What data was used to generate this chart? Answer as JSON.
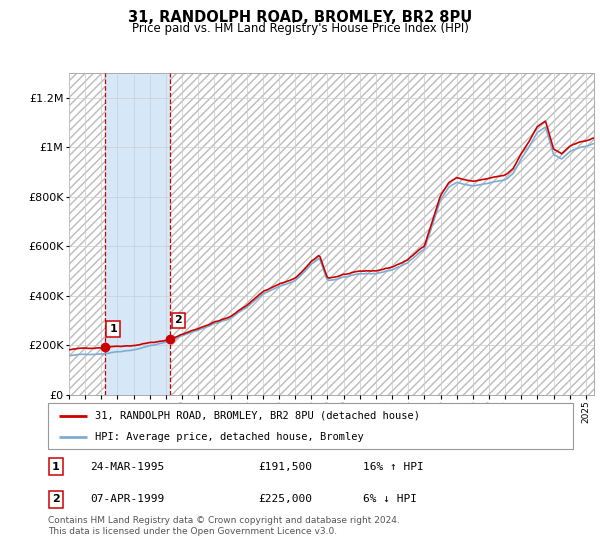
{
  "title": "31, RANDOLPH ROAD, BROMLEY, BR2 8PU",
  "subtitle": "Price paid vs. HM Land Registry's House Price Index (HPI)",
  "sale1_date": 1995.23,
  "sale1_price": 191500,
  "sale1_label": "1",
  "sale2_date": 1999.27,
  "sale2_price": 225000,
  "sale2_label": "2",
  "hpi_color": "#7eadd4",
  "price_color": "#cc0000",
  "marker_color": "#cc0000",
  "shade_color": "#d6e8f7",
  "hatch_color": "#bbbbbb",
  "grid_color": "#cccccc",
  "ylim": [
    0,
    1300000
  ],
  "xlim_start": 1993.0,
  "xlim_end": 2025.5,
  "legend1": "31, RANDOLPH ROAD, BROMLEY, BR2 8PU (detached house)",
  "legend2": "HPI: Average price, detached house, Bromley",
  "table_row1_num": "1",
  "table_row1_date": "24-MAR-1995",
  "table_row1_price": "£191,500",
  "table_row1_hpi": "16% ↑ HPI",
  "table_row2_num": "2",
  "table_row2_date": "07-APR-1999",
  "table_row2_price": "£225,000",
  "table_row2_hpi": "6% ↓ HPI",
  "footer": "Contains HM Land Registry data © Crown copyright and database right 2024.\nThis data is licensed under the Open Government Licence v3.0.",
  "yticks": [
    0,
    200000,
    400000,
    600000,
    800000,
    1000000,
    1200000
  ],
  "ytick_labels": [
    "£0",
    "£200K",
    "£400K",
    "£600K",
    "£800K",
    "£1M",
    "£1.2M"
  ]
}
